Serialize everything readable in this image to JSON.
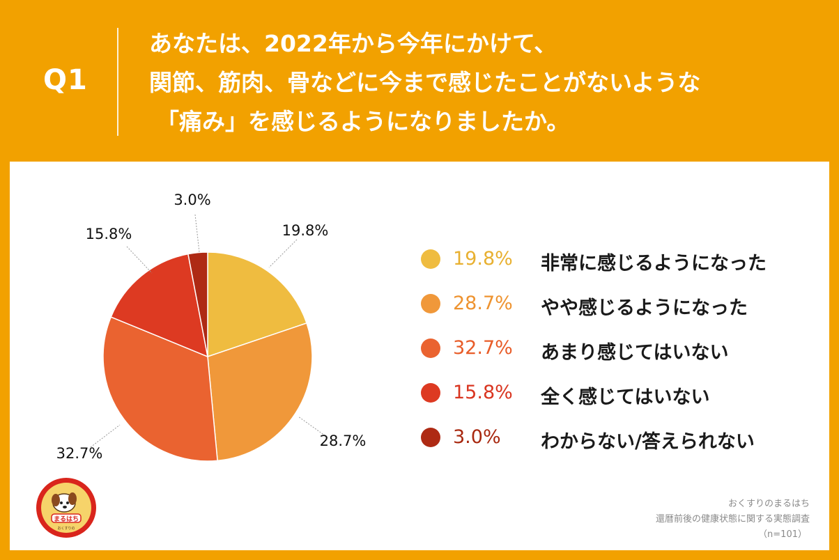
{
  "question": {
    "label": "Q1",
    "lines": [
      "あなたは、2022年から今年にかけて、",
      "関節、筋肉、骨などに今まで感じたことがないような",
      "「痛み」を感じるようになりましたか。"
    ]
  },
  "chart_data": {
    "type": "pie",
    "title": "",
    "start_angle_deg": 0,
    "direction": "clockwise",
    "slices": [
      {
        "label": "非常に感じるようになった",
        "value": 19.8,
        "display": "19.8%",
        "color": "#EFBC40",
        "text_color": "#E8B030"
      },
      {
        "label": "やや感じるようになった",
        "value": 28.7,
        "display": "28.7%",
        "color": "#F0983A",
        "text_color": "#EE9330"
      },
      {
        "label": "あまり感じてはいない",
        "value": 32.7,
        "display": "32.7%",
        "color": "#EA6330",
        "text_color": "#E85C28"
      },
      {
        "label": "全く感じてはいない",
        "value": 15.8,
        "display": "15.8%",
        "color": "#DD3A22",
        "text_color": "#D93520"
      },
      {
        "label": "わからない/答えられない",
        "value": 3.0,
        "display": "3.0%",
        "color": "#AE2A14",
        "text_color": "#A8280F"
      }
    ]
  },
  "source": {
    "line1": "おくすりのまるはち",
    "line2": "還暦前後の健康状態に関する実態調査",
    "line3": "（n=101）"
  },
  "logo": {
    "icon": "dog-mascot-icon",
    "text": "まるはち",
    "small_text": "おくすりの"
  },
  "colors": {
    "background": "#F2A100",
    "panel": "#FFFFFF"
  }
}
